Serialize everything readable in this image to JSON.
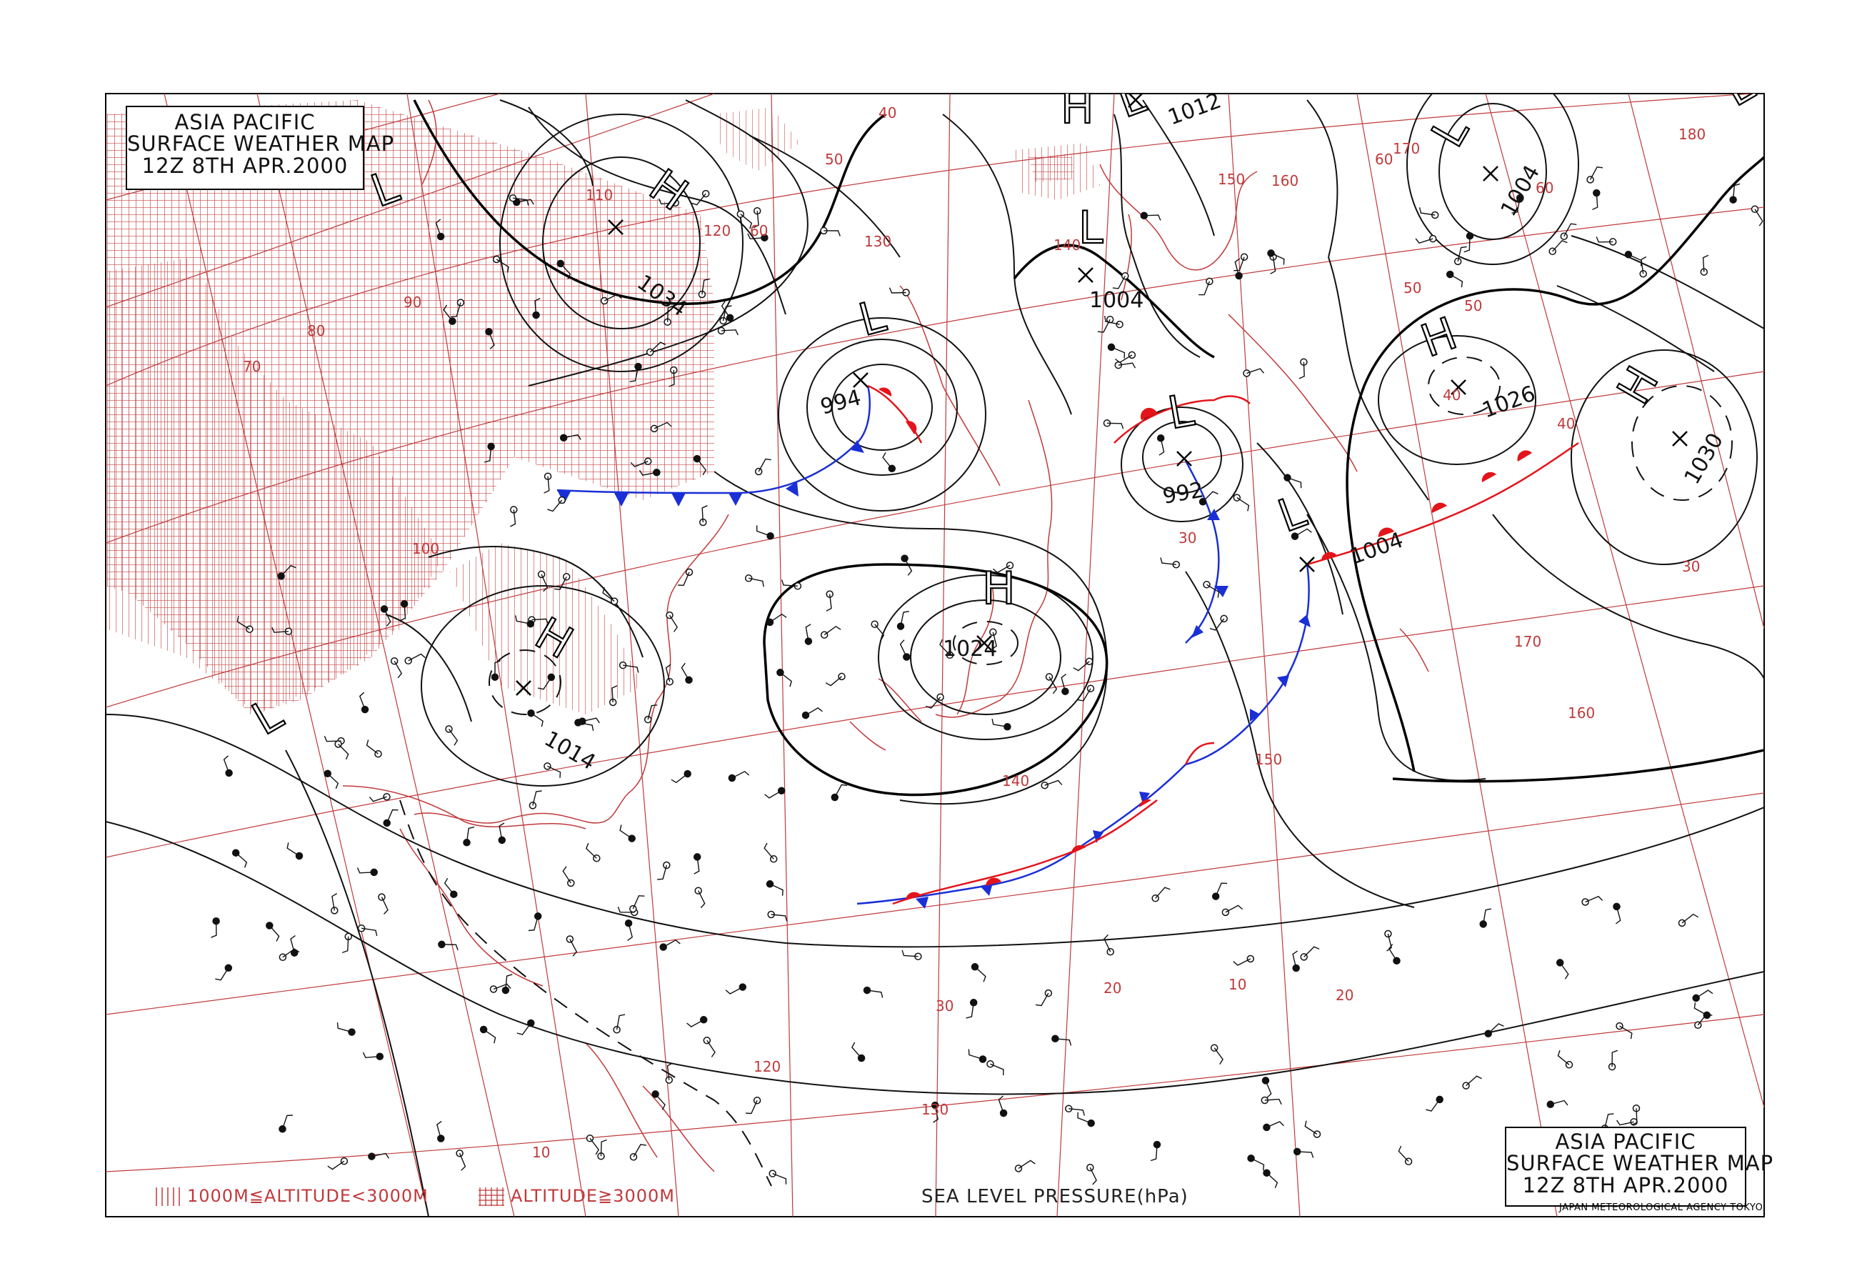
{
  "title": {
    "line1": "ASIA PACIFIC",
    "line2": "SURFACE WEATHER MAP",
    "line3": "12Z  8TH APR.2000"
  },
  "legend": {
    "low_altitude": "1000M≦ALTITUDE<3000M",
    "high_altitude": "ALTITUDE≧3000M",
    "pressure_caption": "SEA LEVEL PRESSURE(hPa)",
    "agency": "JAPAN METEOROLOGICAL AGENCY TOKYO"
  },
  "pressure_systems": [
    {
      "type": "H",
      "value": "1034"
    },
    {
      "type": "L",
      "value": "994"
    },
    {
      "type": "H",
      "value": "1014"
    },
    {
      "type": "H",
      "value": "1024"
    },
    {
      "type": "L",
      "value": "1004"
    },
    {
      "type": "L",
      "value": "1012"
    },
    {
      "type": "L",
      "value": "992"
    },
    {
      "type": "L",
      "value": "1004"
    },
    {
      "type": "L",
      "value": "1004"
    },
    {
      "type": "H",
      "value": "1026"
    },
    {
      "type": "H",
      "value": "1030"
    },
    {
      "type": "L",
      "value": ""
    },
    {
      "type": "L",
      "value": ""
    },
    {
      "type": "H",
      "value": ""
    },
    {
      "type": "L",
      "value": ""
    }
  ],
  "grid_labels": {
    "longitudes": [
      "70",
      "80",
      "90",
      "100",
      "110",
      "120",
      "130",
      "140",
      "150",
      "160",
      "170",
      "180",
      "170",
      "160",
      "150",
      "140",
      "130",
      "120"
    ],
    "latitudes": [
      "60",
      "50",
      "40",
      "30",
      "20",
      "10",
      "60",
      "50",
      "40",
      "30",
      "20",
      "10",
      "60",
      "50",
      "40",
      "30"
    ]
  },
  "colors": {
    "isobar": "#111111",
    "grid": "#c0393b",
    "coast": "#c0393b",
    "cold_front": "#1a2fd6",
    "warm_front": "#e3141a"
  }
}
